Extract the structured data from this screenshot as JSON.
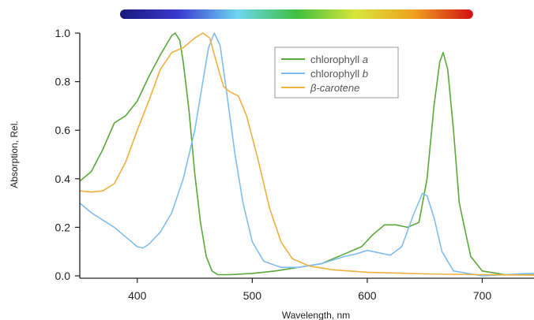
{
  "chart_data": {
    "type": "line",
    "title": "",
    "xlabel": "Wavelength, nm",
    "ylabel": "Absorption, Rel.",
    "xlim": [
      350,
      745
    ],
    "ylim": [
      0,
      1.0
    ],
    "x_ticks": [
      400,
      500,
      600,
      700
    ],
    "y_ticks": [
      0.0,
      0.2,
      0.4,
      0.6,
      0.8,
      1.0
    ],
    "grid": false,
    "legend_position": "top-center",
    "spectrum_bar": {
      "range": [
        385,
        692
      ],
      "colors": [
        "#1a1a7a",
        "#3a3ad0",
        "#6fd6f0",
        "#3fbf3f",
        "#d8e63a",
        "#f0a020",
        "#d01010"
      ]
    },
    "series": [
      {
        "name": "chlorophyll",
        "name_suffix": "a",
        "color": "#5aa83a",
        "points": [
          [
            350,
            0.39
          ],
          [
            360,
            0.43
          ],
          [
            370,
            0.52
          ],
          [
            380,
            0.63
          ],
          [
            390,
            0.66
          ],
          [
            400,
            0.72
          ],
          [
            410,
            0.82
          ],
          [
            420,
            0.91
          ],
          [
            430,
            0.99
          ],
          [
            433,
            1.0
          ],
          [
            437,
            0.97
          ],
          [
            440,
            0.88
          ],
          [
            445,
            0.68
          ],
          [
            450,
            0.42
          ],
          [
            455,
            0.22
          ],
          [
            460,
            0.08
          ],
          [
            465,
            0.02
          ],
          [
            470,
            0.005
          ],
          [
            480,
            0.005
          ],
          [
            500,
            0.01
          ],
          [
            520,
            0.02
          ],
          [
            540,
            0.035
          ],
          [
            560,
            0.05
          ],
          [
            580,
            0.09
          ],
          [
            595,
            0.12
          ],
          [
            605,
            0.17
          ],
          [
            615,
            0.21
          ],
          [
            625,
            0.21
          ],
          [
            635,
            0.2
          ],
          [
            645,
            0.22
          ],
          [
            652,
            0.4
          ],
          [
            658,
            0.7
          ],
          [
            663,
            0.88
          ],
          [
            666,
            0.92
          ],
          [
            670,
            0.85
          ],
          [
            675,
            0.6
          ],
          [
            680,
            0.3
          ],
          [
            690,
            0.08
          ],
          [
            700,
            0.02
          ],
          [
            720,
            0.005
          ],
          [
            745,
            0.005
          ]
        ]
      },
      {
        "name": "chlorophyll",
        "name_suffix": "b",
        "color": "#7fbdf2",
        "points": [
          [
            350,
            0.3
          ],
          [
            360,
            0.26
          ],
          [
            370,
            0.23
          ],
          [
            380,
            0.2
          ],
          [
            390,
            0.16
          ],
          [
            400,
            0.12
          ],
          [
            405,
            0.115
          ],
          [
            410,
            0.13
          ],
          [
            420,
            0.18
          ],
          [
            430,
            0.26
          ],
          [
            440,
            0.4
          ],
          [
            450,
            0.6
          ],
          [
            457,
            0.8
          ],
          [
            462,
            0.94
          ],
          [
            467,
            1.0
          ],
          [
            472,
            0.95
          ],
          [
            477,
            0.78
          ],
          [
            485,
            0.5
          ],
          [
            492,
            0.3
          ],
          [
            500,
            0.14
          ],
          [
            510,
            0.06
          ],
          [
            525,
            0.035
          ],
          [
            540,
            0.035
          ],
          [
            560,
            0.05
          ],
          [
            580,
            0.08
          ],
          [
            590,
            0.09
          ],
          [
            600,
            0.105
          ],
          [
            610,
            0.095
          ],
          [
            620,
            0.085
          ],
          [
            630,
            0.12
          ],
          [
            640,
            0.25
          ],
          [
            648,
            0.34
          ],
          [
            652,
            0.33
          ],
          [
            658,
            0.24
          ],
          [
            665,
            0.1
          ],
          [
            675,
            0.02
          ],
          [
            700,
            0.0
          ],
          [
            740,
            0.01
          ],
          [
            745,
            0.01
          ]
        ]
      },
      {
        "name": "β-carotene",
        "name_suffix": "",
        "color": "#f0b040",
        "points": [
          [
            350,
            0.35
          ],
          [
            360,
            0.345
          ],
          [
            370,
            0.35
          ],
          [
            380,
            0.38
          ],
          [
            390,
            0.47
          ],
          [
            400,
            0.6
          ],
          [
            410,
            0.72
          ],
          [
            420,
            0.85
          ],
          [
            430,
            0.92
          ],
          [
            440,
            0.94
          ],
          [
            450,
            0.98
          ],
          [
            457,
            1.0
          ],
          [
            463,
            0.98
          ],
          [
            470,
            0.86
          ],
          [
            475,
            0.78
          ],
          [
            480,
            0.76
          ],
          [
            488,
            0.74
          ],
          [
            495,
            0.66
          ],
          [
            505,
            0.48
          ],
          [
            515,
            0.28
          ],
          [
            525,
            0.14
          ],
          [
            535,
            0.07
          ],
          [
            550,
            0.04
          ],
          [
            570,
            0.025
          ],
          [
            600,
            0.015
          ],
          [
            650,
            0.008
          ],
          [
            700,
            0.005
          ],
          [
            745,
            0.003
          ]
        ]
      }
    ]
  }
}
